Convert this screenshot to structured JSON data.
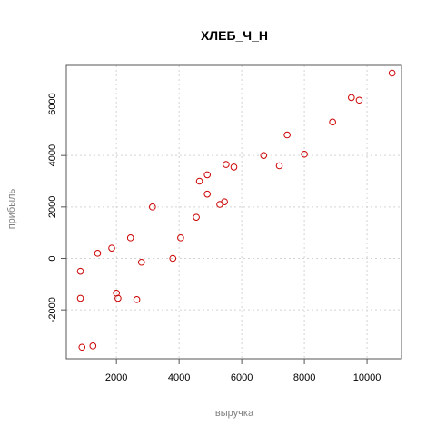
{
  "chart_data": {
    "type": "scatter",
    "title": "ХЛЕБ_Ч_Н",
    "xlabel": "выручка",
    "ylabel": "прибыль",
    "xlim": [
      400,
      11100
    ],
    "ylim": [
      -3900,
      7500
    ],
    "x_ticks": [
      2000,
      4000,
      6000,
      8000,
      10000
    ],
    "y_ticks": [
      -2000,
      0,
      2000,
      4000,
      6000
    ],
    "x_tick_labels": [
      "2000",
      "4000",
      "6000",
      "8000",
      "10000"
    ],
    "y_tick_labels": [
      "-2000",
      "0",
      "2000",
      "4000",
      "6000"
    ],
    "grid": true,
    "colors": {
      "points": "#cc0000",
      "grid": "#d3d3d3",
      "axis": "#555555",
      "title": "#000000",
      "axis_label": "#808080"
    },
    "x": [
      850,
      850,
      900,
      1250,
      1400,
      1850,
      2000,
      2050,
      2450,
      2650,
      2800,
      3150,
      3800,
      4050,
      4550,
      4650,
      4900,
      4900,
      5300,
      5450,
      5500,
      5750,
      6700,
      7200,
      7450,
      8000,
      8900,
      9500,
      9750,
      10800
    ],
    "y": [
      -500,
      -1550,
      -3450,
      -3400,
      200,
      400,
      -1350,
      -1550,
      800,
      -1600,
      -150,
      2000,
      0,
      800,
      1600,
      3000,
      3250,
      2500,
      2100,
      2200,
      3650,
      3550,
      4000,
      3600,
      4800,
      4050,
      5300,
      6250,
      6150,
      7200
    ]
  }
}
